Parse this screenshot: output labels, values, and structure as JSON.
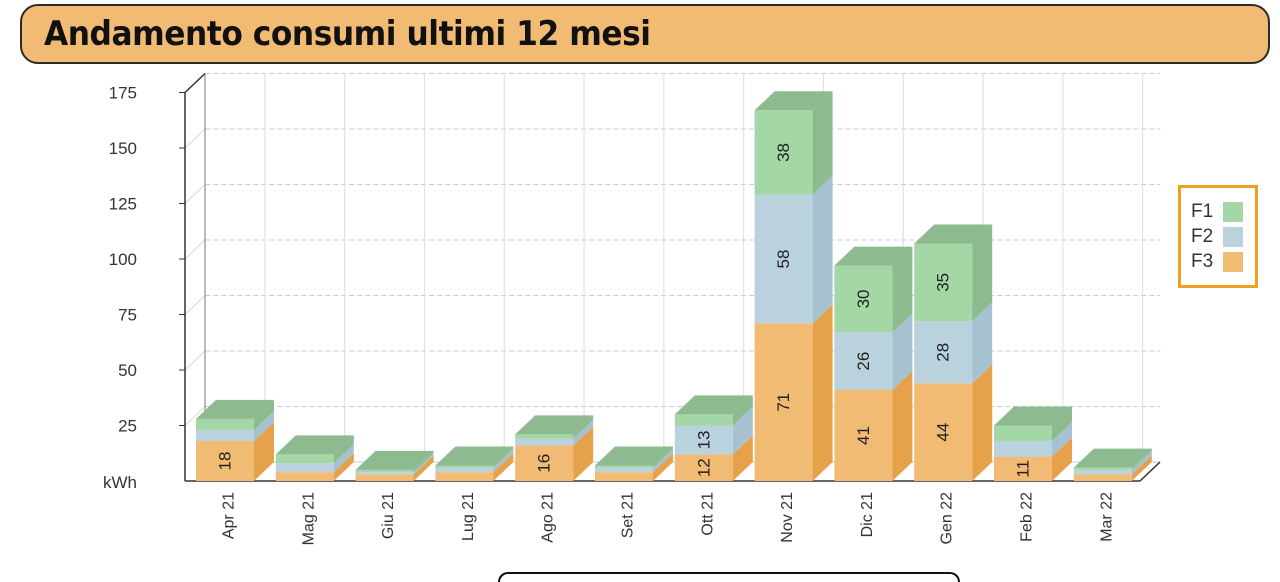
{
  "header": {
    "title": "Andamento consumi ultimi 12 mesi"
  },
  "chart_data": {
    "type": "bar",
    "stacked": true,
    "three_d": true,
    "title": "Andamento consumi ultimi 12 mesi",
    "ylabel": "kWh",
    "ylim": [
      0,
      175
    ],
    "yticks": [
      25,
      50,
      75,
      100,
      125,
      150,
      175
    ],
    "grid": true,
    "legend_position": "right",
    "categories": [
      "Apr 21",
      "Mag 21",
      "Giu 21",
      "Lug 21",
      "Ago 21",
      "Set 21",
      "Ott 21",
      "Nov 21",
      "Dic 21",
      "Gen 22",
      "Feb 22",
      "Mar 22"
    ],
    "series": [
      {
        "name": "F3",
        "color": "#f2bb74",
        "side": "#e5a24a",
        "values": [
          18,
          4,
          3,
          4,
          16,
          4,
          12,
          71,
          41,
          44,
          11,
          3
        ],
        "labels": [
          "18",
          "",
          "",
          "",
          "16",
          "",
          "12",
          "71",
          "41",
          "44",
          "11",
          ""
        ]
      },
      {
        "name": "F2",
        "color": "#b9d2de",
        "side": "#a6c2d0",
        "values": [
          5,
          4,
          1,
          2,
          3,
          2,
          13,
          58,
          26,
          28,
          7,
          2
        ],
        "labels": [
          "",
          "",
          "",
          "",
          "",
          "",
          "13",
          "58",
          "26",
          "28",
          "",
          ""
        ]
      },
      {
        "name": "F1",
        "color": "#a3d7a5",
        "side": "#8dba8f",
        "values": [
          5,
          4,
          1,
          1,
          2,
          1,
          5,
          38,
          30,
          35,
          7,
          1
        ],
        "labels": [
          "",
          "",
          "",
          "",
          "",
          "",
          "",
          "38",
          "30",
          "35",
          "",
          ""
        ]
      }
    ]
  },
  "legend": {
    "items": [
      "F1",
      "F2",
      "F3"
    ]
  }
}
